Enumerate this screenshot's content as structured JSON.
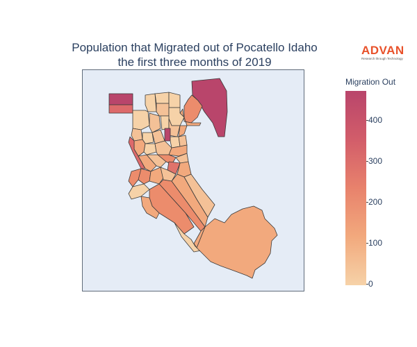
{
  "title": {
    "line1": "Population that Migrated out of Pocatello Idaho",
    "line2": "the first three months of 2019"
  },
  "logo": {
    "name": "ADVAN",
    "tagline": "Research through Technology"
  },
  "colorbar": {
    "title": "Migration Out",
    "ticks": [
      "0",
      "100",
      "200",
      "300",
      "400"
    ],
    "range": [
      0,
      480
    ],
    "scale": [
      "#f6d2a8",
      "#f2a97d",
      "#e8826c",
      "#d25d6a",
      "#b9456b"
    ]
  },
  "map": {
    "background": "#e5ecf6",
    "border": "#555555"
  }
}
